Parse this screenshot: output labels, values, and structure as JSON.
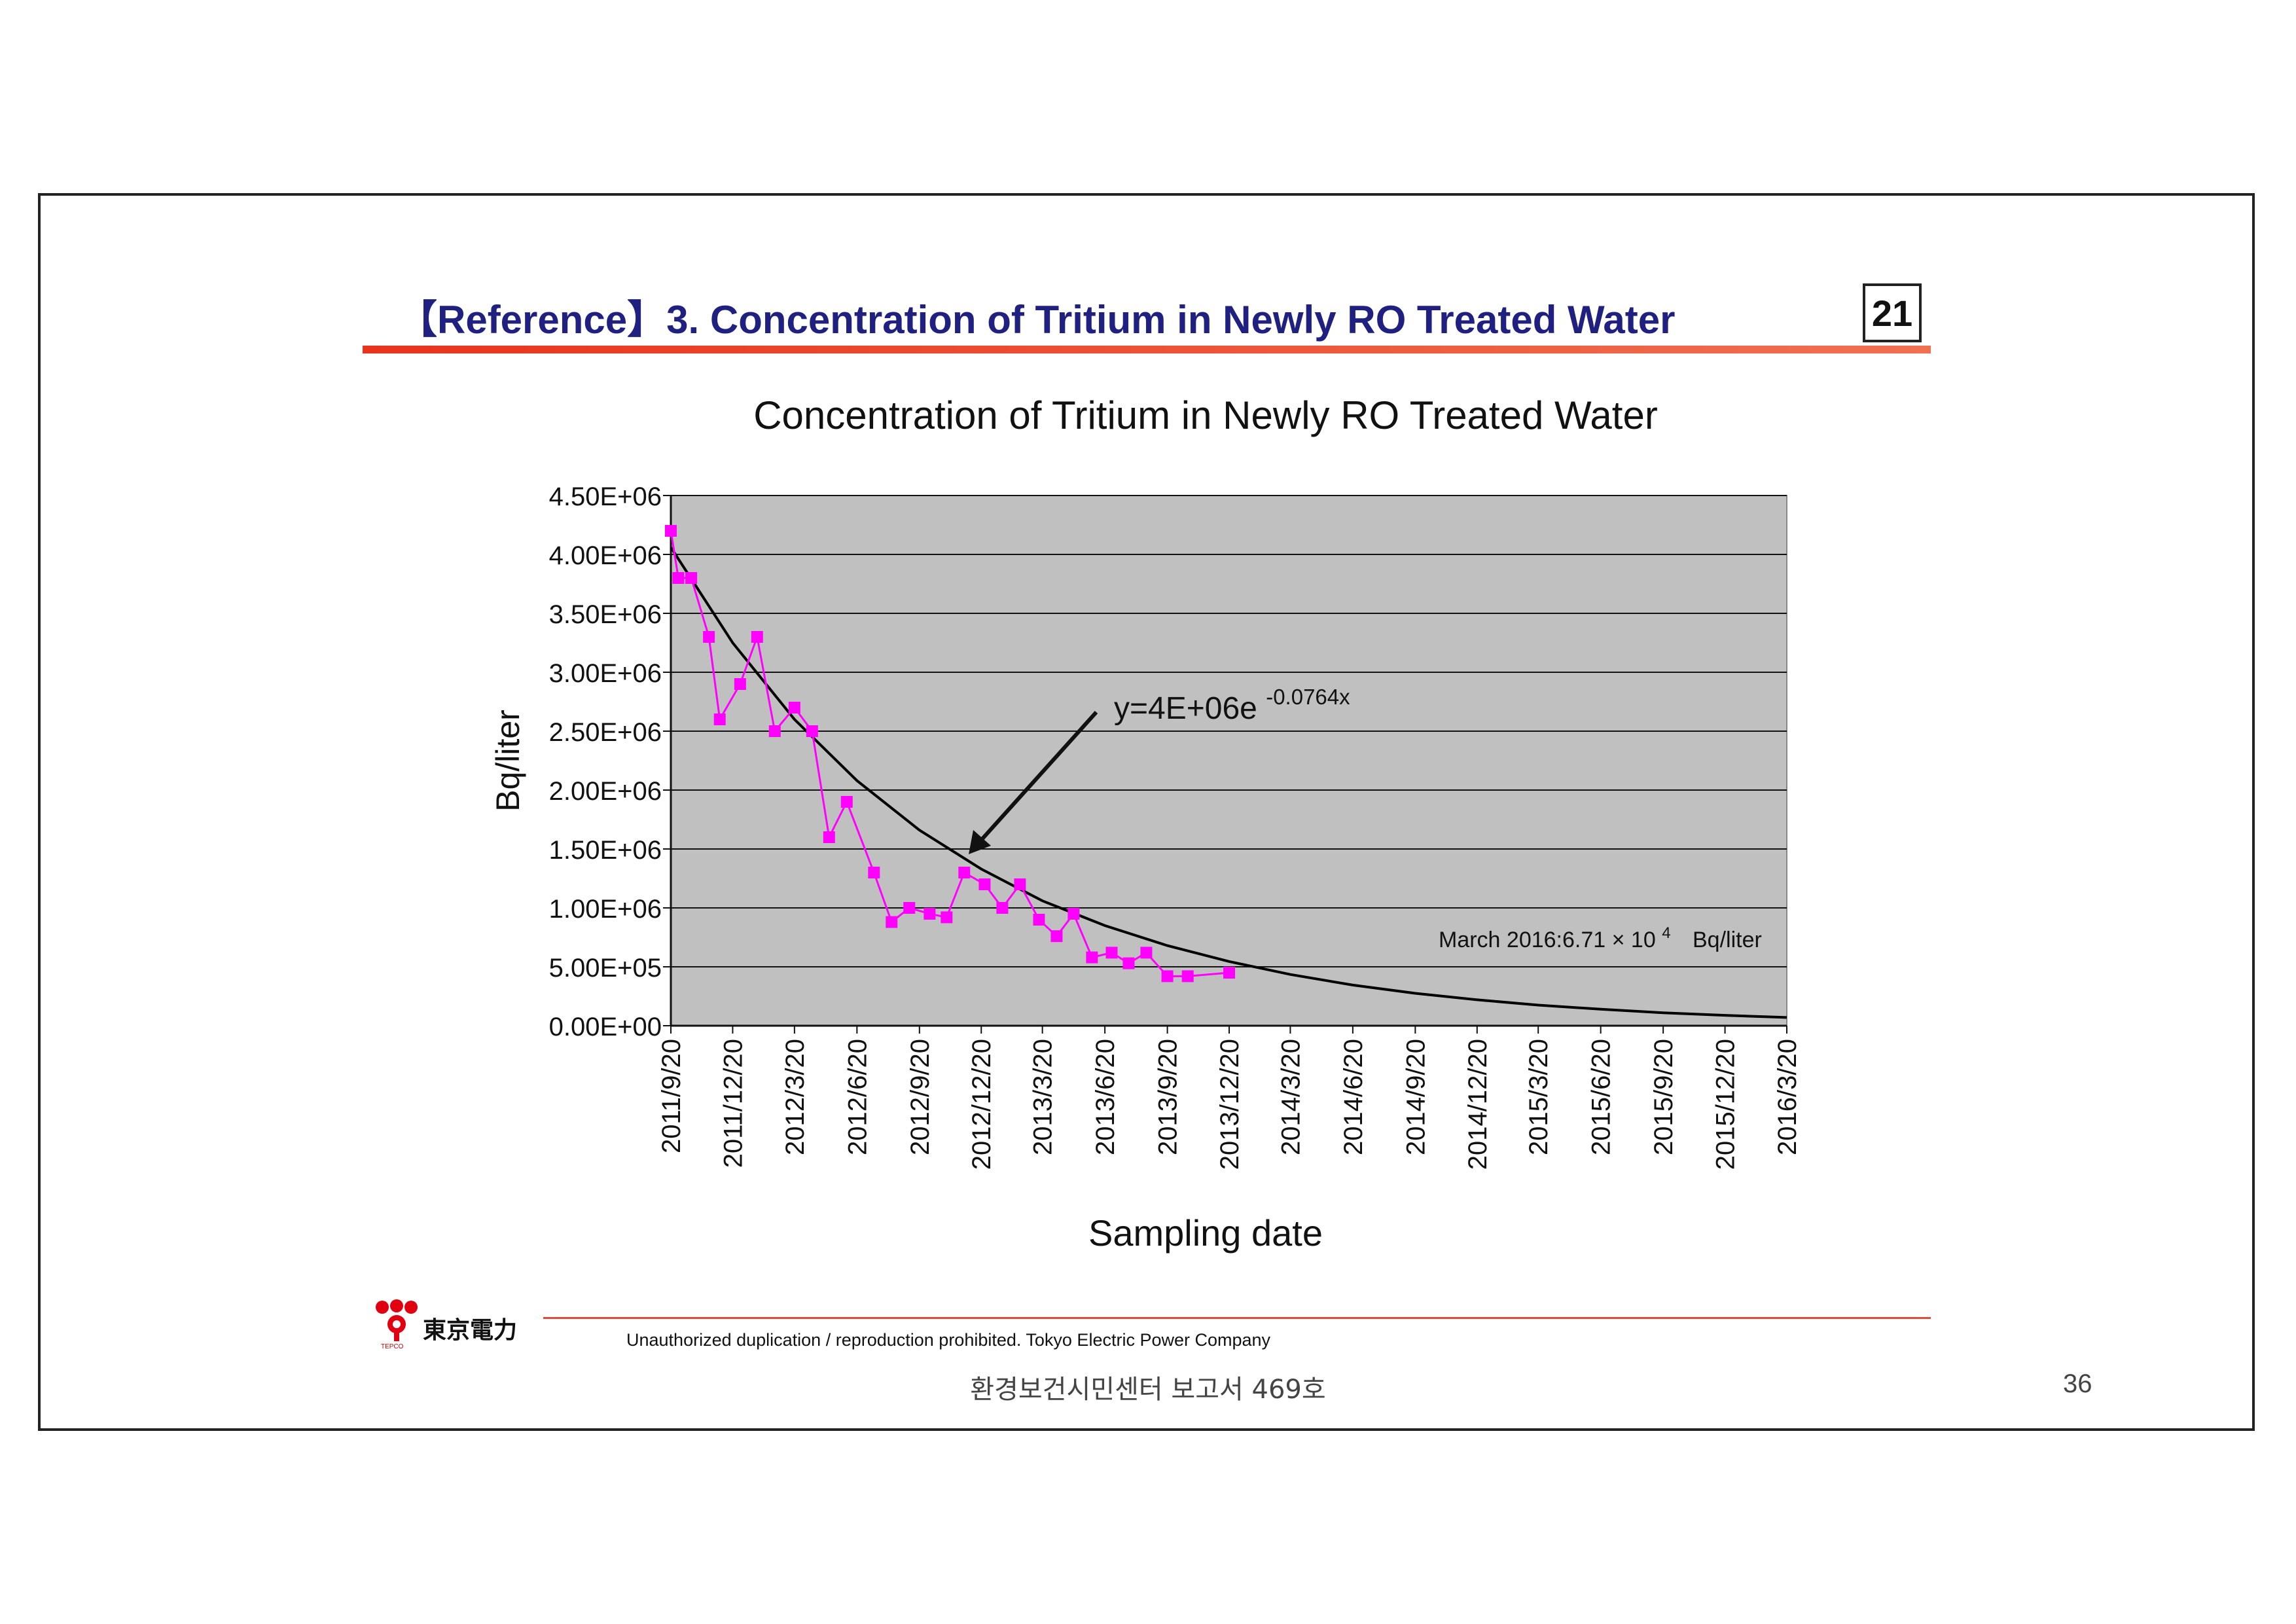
{
  "header": {
    "title": "【Reference】3. Concentration of Tritium in Newly RO Treated Water",
    "slide_number": "21"
  },
  "footer": {
    "logo_text": "東京電力",
    "logo_sub": "TEPCO",
    "copyright": "Unauthorized duplication / reproduction prohibited.   Tokyo Electric Power Company",
    "report_caption": "환경보건시민센터 보고서 469호",
    "page_number": "36"
  },
  "colors": {
    "title_text": "#1f2080",
    "accent_rule": "#e8341c",
    "plot_background": "#c0c0c0",
    "measured_series": "#ff00ff",
    "fit_series": "#000000"
  },
  "chart_data": {
    "type": "line",
    "title": "Concentration of Tritium in Newly RO Treated Water",
    "xlabel": "Sampling date",
    "ylabel": "Bq/liter",
    "ylim": [
      0,
      4500000
    ],
    "grid": true,
    "x_ticks": [
      "2011/9/20",
      "2011/12/20",
      "2012/3/20",
      "2012/6/20",
      "2012/9/20",
      "2012/12/20",
      "2013/3/20",
      "2013/6/20",
      "2013/9/20",
      "2013/12/20",
      "2014/3/20",
      "2014/6/20",
      "2014/9/20",
      "2014/12/20",
      "2015/3/20",
      "2015/6/20",
      "2015/9/20",
      "2015/12/20",
      "2016/3/20"
    ],
    "y_ticks": [
      "0.00E+00",
      "5.00E+05",
      "1.00E+06",
      "1.50E+06",
      "2.00E+06",
      "2.50E+06",
      "3.00E+06",
      "3.50E+06",
      "4.00E+06",
      "4.50E+06"
    ],
    "series": [
      {
        "kind": "measured",
        "color": "#ff00ff",
        "marker": "square",
        "points": [
          {
            "date": "2011-09-20",
            "value": 4200000
          },
          {
            "date": "2011-10-01",
            "value": 3800000
          },
          {
            "date": "2011-10-20",
            "value": 3800000
          },
          {
            "date": "2011-11-15",
            "value": 3300000
          },
          {
            "date": "2011-12-01",
            "value": 2600000
          },
          {
            "date": "2011-12-31",
            "value": 2900000
          },
          {
            "date": "2012-01-25",
            "value": 3300000
          },
          {
            "date": "2012-02-20",
            "value": 2500000
          },
          {
            "date": "2012-03-20",
            "value": 2700000
          },
          {
            "date": "2012-04-15",
            "value": 2500000
          },
          {
            "date": "2012-05-10",
            "value": 1600000
          },
          {
            "date": "2012-06-05",
            "value": 1900000
          },
          {
            "date": "2012-07-15",
            "value": 1300000
          },
          {
            "date": "2012-08-10",
            "value": 880000
          },
          {
            "date": "2012-09-05",
            "value": 1000000
          },
          {
            "date": "2012-10-05",
            "value": 950000
          },
          {
            "date": "2012-10-30",
            "value": 920000
          },
          {
            "date": "2012-11-25",
            "value": 1300000
          },
          {
            "date": "2012-12-25",
            "value": 1200000
          },
          {
            "date": "2013-01-20",
            "value": 1000000
          },
          {
            "date": "2013-02-15",
            "value": 1200000
          },
          {
            "date": "2013-03-15",
            "value": 900000
          },
          {
            "date": "2013-04-10",
            "value": 760000
          },
          {
            "date": "2013-05-05",
            "value": 950000
          },
          {
            "date": "2013-06-01",
            "value": 580000
          },
          {
            "date": "2013-06-30",
            "value": 620000
          },
          {
            "date": "2013-07-25",
            "value": 530000
          },
          {
            "date": "2013-08-20",
            "value": 620000
          },
          {
            "date": "2013-09-20",
            "value": 420000
          },
          {
            "date": "2013-10-20",
            "value": 420000
          },
          {
            "date": "2013-12-20",
            "value": 450000
          }
        ]
      },
      {
        "kind": "trend",
        "color": "#000000",
        "points": [
          {
            "date": "2011-09-20",
            "value": 4060000
          },
          {
            "date": "2011-12-20",
            "value": 3250000
          },
          {
            "date": "2012-03-20",
            "value": 2600000
          },
          {
            "date": "2012-06-20",
            "value": 2080000
          },
          {
            "date": "2012-09-20",
            "value": 1660000
          },
          {
            "date": "2012-12-20",
            "value": 1330000
          },
          {
            "date": "2013-03-20",
            "value": 1060000
          },
          {
            "date": "2013-06-20",
            "value": 850000
          },
          {
            "date": "2013-09-20",
            "value": 680000
          },
          {
            "date": "2013-12-20",
            "value": 545000
          },
          {
            "date": "2014-03-20",
            "value": 435000
          },
          {
            "date": "2014-06-20",
            "value": 345000
          },
          {
            "date": "2014-09-20",
            "value": 275000
          },
          {
            "date": "2014-12-20",
            "value": 220000
          },
          {
            "date": "2015-03-20",
            "value": 175000
          },
          {
            "date": "2015-06-20",
            "value": 140000
          },
          {
            "date": "2015-09-20",
            "value": 110000
          },
          {
            "date": "2015-12-20",
            "value": 88000
          },
          {
            "date": "2016-03-20",
            "value": 70000
          }
        ]
      }
    ],
    "annotations": {
      "equation_main": "y=4E+06e",
      "equation_exponent": "-0.0764x",
      "note_main": "March 2016:6.71 × 10",
      "note_exponent": "4",
      "note_unit": "Bq/liter"
    }
  }
}
